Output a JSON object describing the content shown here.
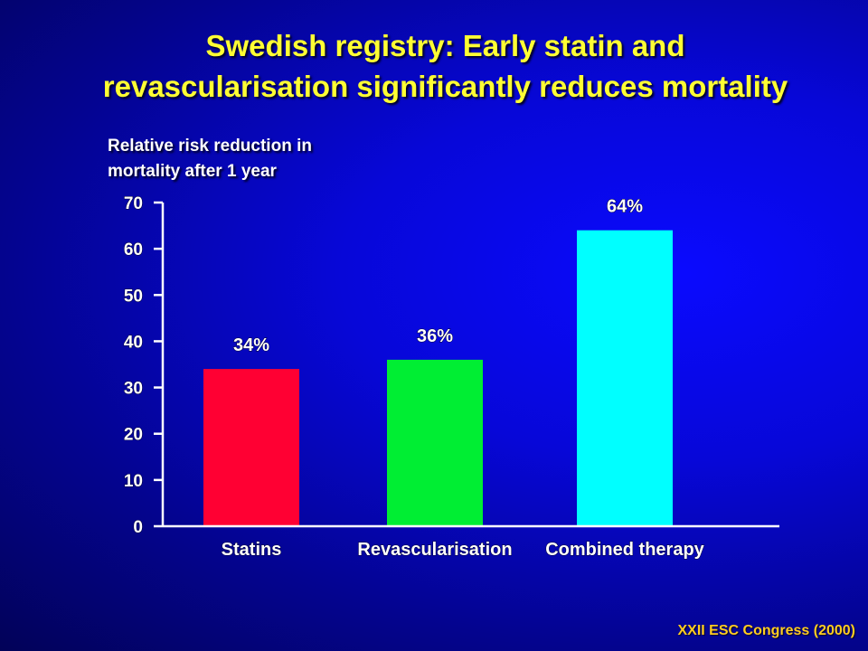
{
  "slide": {
    "title_line1": "Swedish registry: Early statin and",
    "title_line2": "revascularisation significantly reduces mortality",
    "source": "XXII ESC Congress (2000)"
  },
  "chart_data": {
    "type": "bar",
    "ylabel_line1": "Relative risk reduction in",
    "ylabel_line2": "mortality after 1 year",
    "categories": [
      "Statins",
      "Revascularisation",
      "Combined therapy"
    ],
    "values": [
      34,
      36,
      64
    ],
    "data_labels": [
      "34%",
      "36%",
      "64%"
    ],
    "bar_colors": [
      "#ff0033",
      "#00ee33",
      "#00ffff"
    ],
    "ylim": [
      0,
      70
    ],
    "yticks": [
      0,
      10,
      20,
      30,
      40,
      50,
      60,
      70
    ],
    "grid": false
  }
}
